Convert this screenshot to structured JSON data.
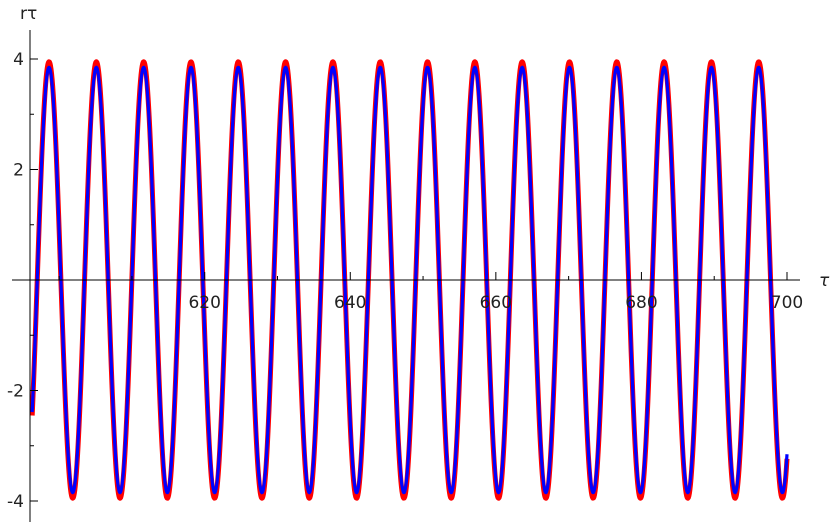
{
  "chart_data": {
    "type": "line",
    "title": "",
    "xlabel": "τ",
    "ylabel": "rτ",
    "xlim": [
      596,
      700
    ],
    "ylim": [
      -4.4,
      4.4
    ],
    "x_ticks": [
      620,
      640,
      660,
      680,
      700
    ],
    "y_ticks": [
      -4,
      -2,
      2,
      4
    ],
    "x_minor_ticks": [
      600,
      610,
      630,
      650,
      670,
      690
    ],
    "y_minor_ticks": [
      -3,
      -1,
      1,
      3
    ],
    "grid": false,
    "legend": "none",
    "series": [
      {
        "color": "#ff0000",
        "function": "sine",
        "amplitude": 3.95,
        "period": 6.5,
        "phase_at_start": -0.67,
        "x_start": 596.3,
        "x_end": 700
      },
      {
        "color": "#0000ff",
        "function": "sine",
        "amplitude": 3.85,
        "period": 6.5,
        "phase_at_start": -0.67,
        "x_start": 596.3,
        "x_end": 700
      }
    ]
  }
}
